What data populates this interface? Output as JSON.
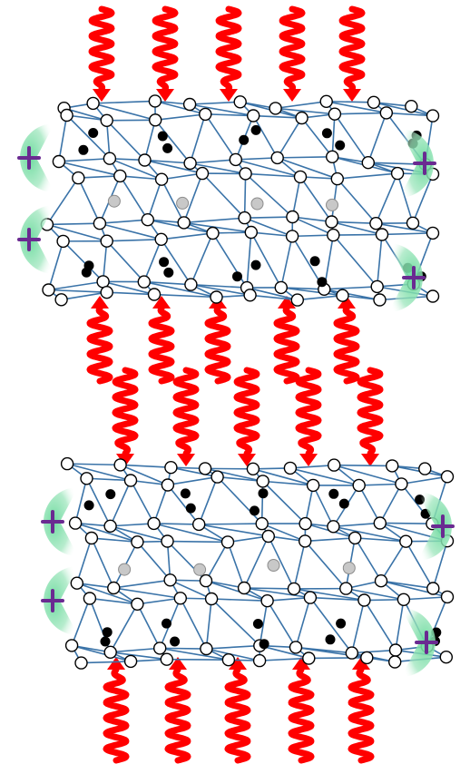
{
  "colors": {
    "wave": "#ff0000",
    "bond": "#3a73a8",
    "cation_fill": "#66d99a",
    "cation_plus": "#6a2a91",
    "oxygen_fill": "#ffffff",
    "dark_atom": "#000000",
    "interior_atom": "#c8c8c8"
  },
  "icons": {
    "cation": "plus-sign-icon",
    "wave": "wavy-arrow-icon"
  },
  "layers": [
    {
      "name": "upper-sheet-layer",
      "cations": 4,
      "center_atoms": 4
    },
    {
      "name": "lower-sheet-layer",
      "cations": 4,
      "center_atoms": 4
    }
  ],
  "wave_groups": [
    {
      "name": "top",
      "count": 5,
      "direction": "down"
    },
    {
      "name": "middle-up",
      "count": 5,
      "direction": "up"
    },
    {
      "name": "middle-down",
      "count": 5,
      "direction": "down"
    },
    {
      "name": "bottom",
      "count": 5,
      "direction": "up"
    }
  ]
}
